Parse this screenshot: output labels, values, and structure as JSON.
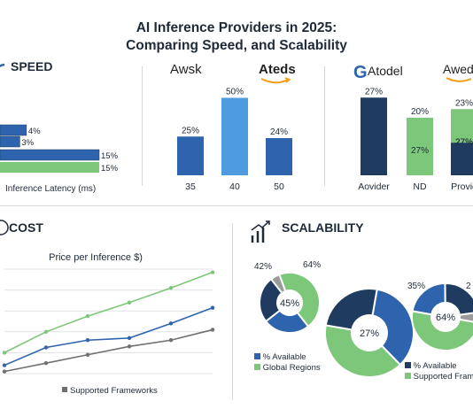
{
  "title_line1": "AI Inference Providers in 2025:",
  "title_line2": "Comparing Speed, and Scalability",
  "colors": {
    "navy": "#1f3b60",
    "blue": "#2d64ad",
    "light_blue": "#4f9be0",
    "green": "#7dc77a",
    "gray": "#707070"
  },
  "speed": {
    "heading": "SPEED",
    "icon": "speedometer-icon",
    "xlabel": "Inference Latency (ms)",
    "chart_data": {
      "type": "bar",
      "orientation": "horizontal",
      "xlabel": "Inference Latency (ms)",
      "bars": [
        {
          "label": "4%",
          "value": 4,
          "color": "#2d64ad"
        },
        {
          "label": "3%",
          "value": 3,
          "color": "#2d64ad"
        },
        {
          "label": "15%",
          "value": 15,
          "color": "#2d64ad"
        },
        {
          "label": "15%",
          "value": 15,
          "color": "#7dc77a"
        }
      ]
    }
  },
  "providers_a": {
    "logo1": "Awsk",
    "logo2": "Ateds",
    "chart_data": {
      "type": "bar",
      "categories": [
        "35",
        "40",
        "50"
      ],
      "values": [
        25,
        50,
        24
      ],
      "value_labels": [
        "25%",
        "50%",
        "24%"
      ],
      "colors": [
        "#2d64ad",
        "#4f9be0",
        "#2d64ad"
      ]
    }
  },
  "providers_b": {
    "logo1": "Atodel",
    "logo1_mark": "G",
    "logo2": "Awede",
    "chart_data": {
      "type": "bar",
      "categories": [
        "Aovider",
        "ND",
        "Provid"
      ],
      "values": [
        27,
        20,
        23
      ],
      "value_labels": [
        "27%",
        "20%",
        "23%"
      ],
      "inner_labels": [
        "",
        "27%",
        "27%"
      ],
      "colors": [
        "#1f3b60",
        "#7dc77a",
        "#7dc77a"
      ]
    }
  },
  "cost": {
    "heading": "COST",
    "icon": "dollar-icon",
    "chart_data": {
      "type": "line",
      "title": "Price per Inference $)",
      "legend": "Supported Frameworks",
      "x": [
        0,
        1,
        2,
        3,
        4,
        5
      ],
      "series": [
        {
          "color": "#7dc77a",
          "values": [
            20,
            40,
            55,
            68,
            82,
            97
          ]
        },
        {
          "color": "#2d64ad",
          "values": [
            8,
            25,
            32,
            34,
            48,
            63
          ]
        },
        {
          "color": "#707070",
          "values": [
            2,
            10,
            18,
            26,
            32,
            42
          ]
        }
      ],
      "ylim": [
        0,
        100
      ]
    }
  },
  "scalability": {
    "heading": "SCALABILITY",
    "icon": "growth-chart-icon",
    "legend_left": [
      "% Available",
      "Global Regions"
    ],
    "legend_right": [
      "% Available",
      "Supported Frame"
    ],
    "chart_data": {
      "type": "pie",
      "donuts": [
        {
          "center_label": "45%",
          "labels": [
            "42%",
            "64%"
          ],
          "segments": [
            {
              "value": 45,
              "color": "#7dc77a"
            },
            {
              "value": 25,
              "color": "#2d64ad"
            },
            {
              "value": 25,
              "color": "#1f3b60"
            },
            {
              "value": 5,
              "color": "#9a9a9a"
            }
          ]
        },
        {
          "center_label": "27%",
          "labels": [],
          "segments": [
            {
              "value": 35,
              "color": "#2d64ad"
            },
            {
              "value": 40,
              "color": "#7dc77a"
            },
            {
              "value": 25,
              "color": "#1f3b60"
            }
          ]
        },
        {
          "center_label": "64%",
          "labels": [
            "35%",
            "2"
          ],
          "segments": [
            {
              "value": 50,
              "color": "#7dc77a"
            },
            {
              "value": 22,
              "color": "#2d64ad"
            },
            {
              "value": 23,
              "color": "#1f3b60"
            },
            {
              "value": 5,
              "color": "#9a9a9a"
            }
          ]
        }
      ]
    }
  }
}
